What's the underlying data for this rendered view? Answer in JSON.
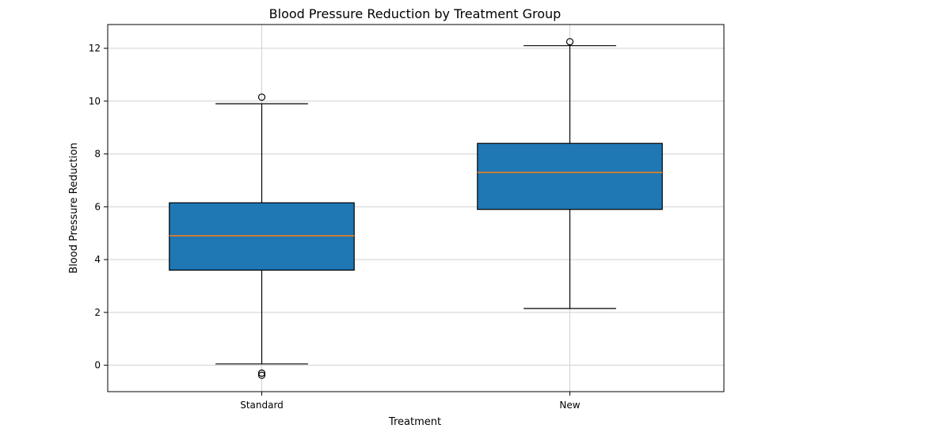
{
  "chart_data": {
    "type": "box",
    "title": "Blood Pressure Reduction by Treatment Group",
    "xlabel": "Treatment",
    "ylabel": "Blood Pressure Reduction",
    "categories": [
      "Standard",
      "New"
    ],
    "ylim": [
      -1,
      12.9
    ],
    "yticks": [
      0,
      2,
      4,
      6,
      8,
      10,
      12
    ],
    "grid": true,
    "colors": {
      "box": "#1f77b4",
      "median": "#ff7f0e",
      "grid": "#d0d0d0",
      "edge": "#000000"
    },
    "boxes": [
      {
        "name": "Standard",
        "whisker_low": 0.05,
        "q1": 3.6,
        "median": 4.9,
        "q3": 6.15,
        "whisker_high": 9.9,
        "outliers": [
          10.15,
          -0.3,
          -0.38
        ]
      },
      {
        "name": "New",
        "whisker_low": 2.15,
        "q1": 5.9,
        "median": 7.3,
        "q3": 8.4,
        "whisker_high": 12.1,
        "outliers": [
          12.25
        ]
      }
    ]
  }
}
